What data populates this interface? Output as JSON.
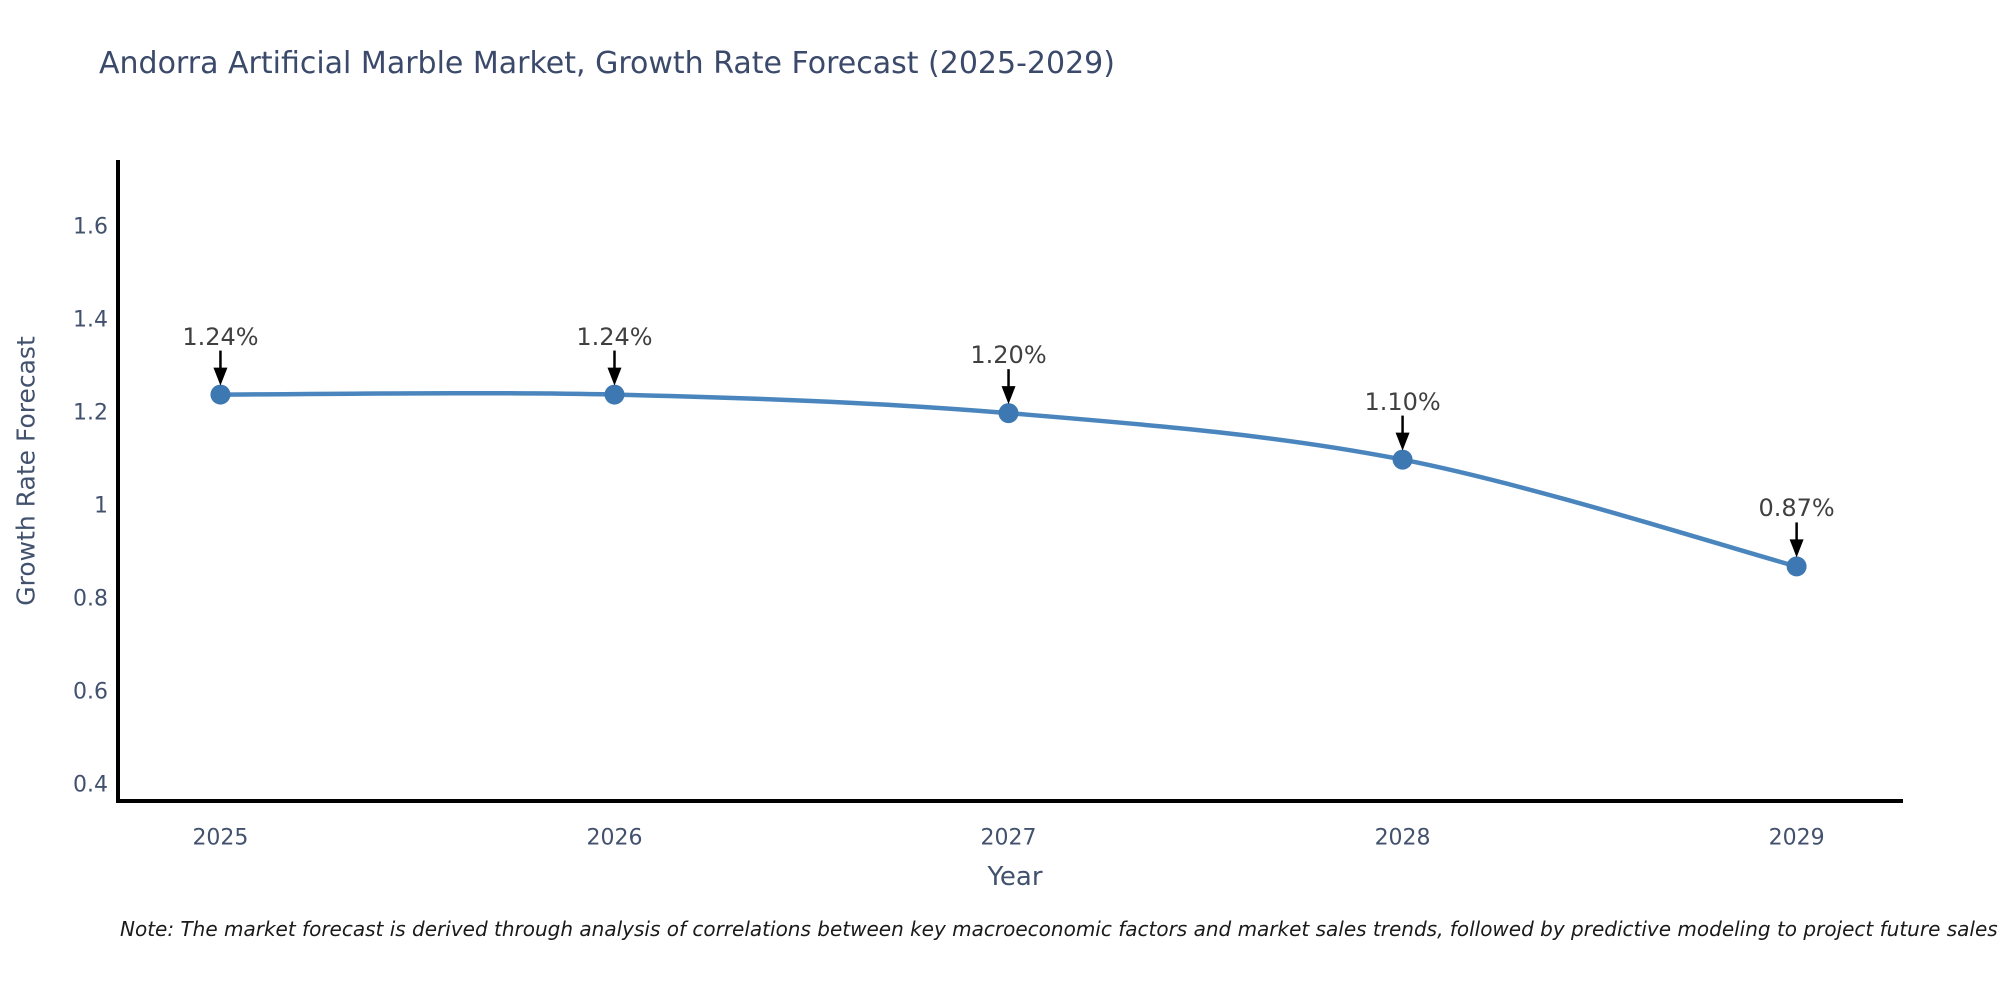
{
  "title": "Andorra Artificial Marble Market, Growth Rate Forecast (2025-2029)",
  "note": "Note: The market forecast is derived through analysis of correlations between key macroeconomic factors and market sales trends, followed by predictive modeling to project future sales",
  "chart_data": {
    "type": "line",
    "title": "Andorra Artificial Marble Market, Growth Rate Forecast (2025-2029)",
    "xlabel": "Year",
    "ylabel": "Growth Rate Forecast",
    "x": [
      2025,
      2026,
      2027,
      2028,
      2029
    ],
    "xticklabels": [
      "2025",
      "2026",
      "2027",
      "2028",
      "2029"
    ],
    "values": [
      1.24,
      1.24,
      1.2,
      1.1,
      0.87
    ],
    "point_labels": [
      "1.24%",
      "1.24%",
      "1.20%",
      "1.10%",
      "0.87%"
    ],
    "yticks": [
      0.4,
      0.6,
      0.8,
      1.0,
      1.2,
      1.4,
      1.6
    ],
    "yticklabels": [
      "0.4",
      "0.6",
      "0.8",
      "1",
      "1.2",
      "1.4",
      "1.6"
    ],
    "xlim": [
      2024.74,
      2029.27
    ],
    "ylim": [
      0.365,
      1.745
    ],
    "grid": false,
    "legend": null,
    "line_color": "#4a86bd",
    "marker_color": "#3e78b2",
    "arrow_color": "#000000",
    "axis_color": "#000000"
  },
  "colors": {
    "background": "#ffffff",
    "title_text": "#3b4a6b",
    "tick_text": "#42516d",
    "annotation_text": "#404040",
    "note_text": "#1a1a1a"
  }
}
